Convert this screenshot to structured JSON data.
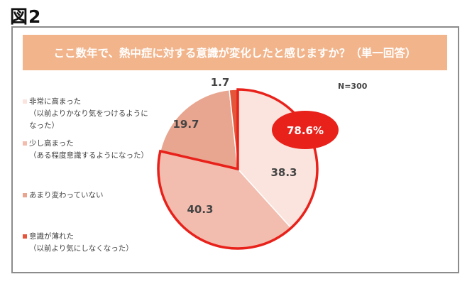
{
  "figure_label": "図2",
  "question": "ここ数年で、熱中症に対する意識が変化したと感じますか？（単一回答）",
  "sample_size": "N=300",
  "callout": "78.6%",
  "colors": {
    "banner": "#f2b48b",
    "highlight": "#e8211a",
    "frame": "#8c8c8c"
  },
  "chart_data": {
    "type": "pie",
    "title": "ここ数年で、熱中症に対する意識が変化したと感じますか？（単一回答）",
    "start": "12 o'clock, clockwise",
    "slices": [
      {
        "label_lines": [
          "非常に高まった",
          "（以前よりかなり気をつけるように",
          "なった）"
        ],
        "value": 38.3,
        "display": "38.3",
        "color": "#fbe4dd"
      },
      {
        "label_lines": [
          "少し高まった",
          "（ある程度意識するようになった）"
        ],
        "value": 40.3,
        "display": "40.3",
        "color": "#f2bcae"
      },
      {
        "label_lines": [
          "あまり変わっていない"
        ],
        "value": 19.7,
        "display": "19.7",
        "color": "#e8a58f"
      },
      {
        "label_lines": [
          "意識が薄れた",
          "（以前より気にしなくなった）"
        ],
        "value": 1.7,
        "display": "1.7",
        "color": "#e4553a"
      }
    ],
    "highlighted_total": 78.6,
    "highlighted_slices": [
      0,
      1
    ],
    "legend": "left"
  }
}
